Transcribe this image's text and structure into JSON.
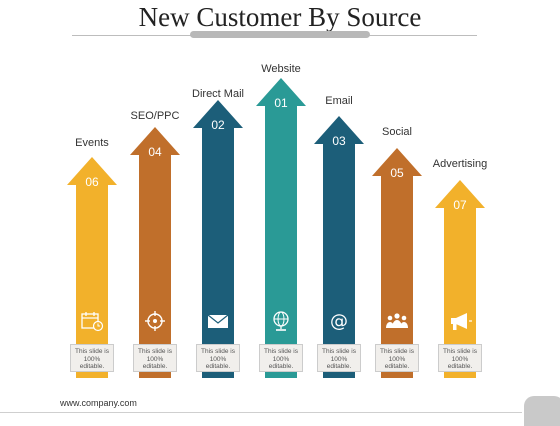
{
  "title": "New Customer By Source",
  "footer": "www.company.com",
  "note_text": "This slide is 100% editable.",
  "colors": {
    "yellow": "#f2b12b",
    "orange": "#c06f2b",
    "navy": "#1c5e79",
    "teal": "#2a9a96"
  },
  "sources": [
    {
      "label": "Events",
      "rank": "06",
      "color": "#f2b12b",
      "icon": "calendar-icon"
    },
    {
      "label": "SEO/PPC",
      "rank": "04",
      "color": "#c06f2b",
      "icon": "target-icon"
    },
    {
      "label": "Direct Mail",
      "rank": "02",
      "color": "#1c5e79",
      "icon": "envelope-icon"
    },
    {
      "label": "Website",
      "rank": "01",
      "color": "#2a9a96",
      "icon": "globe-icon"
    },
    {
      "label": "Email",
      "rank": "03",
      "color": "#1c5e79",
      "icon": "at-sign-icon"
    },
    {
      "label": "Social",
      "rank": "05",
      "color": "#c06f2b",
      "icon": "people-icon"
    },
    {
      "label": "Advertising",
      "rank": "07",
      "color": "#f2b12b",
      "icon": "megaphone-icon"
    }
  ]
}
